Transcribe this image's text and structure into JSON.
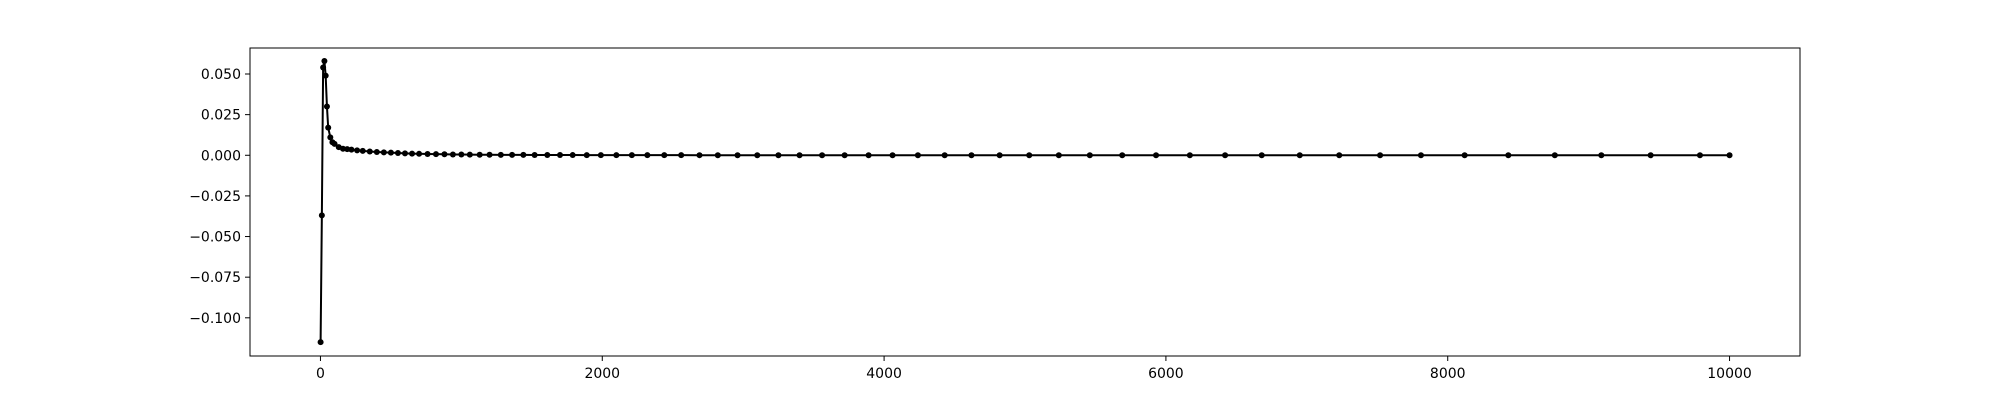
{
  "chart_data": {
    "type": "line",
    "title": "",
    "xlabel": "",
    "ylabel": "",
    "xlim": [
      -500,
      10500
    ],
    "ylim": [
      -0.1235,
      0.066
    ],
    "x_ticks": [
      0,
      2000,
      4000,
      6000,
      8000,
      10000
    ],
    "x_tick_labels": [
      "0",
      "2000",
      "4000",
      "6000",
      "8000",
      "10000"
    ],
    "y_ticks": [
      -0.1,
      -0.075,
      -0.05,
      -0.025,
      0.0,
      0.025,
      0.05
    ],
    "y_tick_labels": [
      "−0.100",
      "−0.075",
      "−0.050",
      "−0.025",
      "0.000",
      "0.025",
      "0.050"
    ],
    "grid": false,
    "legend": "none",
    "series": [
      {
        "color": "#000000",
        "marker": "circle",
        "x": [
          1,
          10,
          19,
          28,
          37,
          46,
          55,
          70,
          85,
          100,
          130,
          160,
          190,
          220,
          260,
          300,
          350,
          400,
          450,
          500,
          550,
          600,
          650,
          700,
          760,
          820,
          880,
          940,
          1000,
          1060,
          1130,
          1200,
          1280,
          1360,
          1440,
          1520,
          1610,
          1700,
          1790,
          1890,
          1990,
          2100,
          2210,
          2320,
          2440,
          2560,
          2690,
          2820,
          2960,
          3100,
          3250,
          3400,
          3560,
          3720,
          3890,
          4060,
          4240,
          4430,
          4620,
          4820,
          5030,
          5240,
          5460,
          5690,
          5930,
          6170,
          6420,
          6680,
          6950,
          7230,
          7520,
          7810,
          8120,
          8430,
          8760,
          9090,
          9440,
          9790,
          10000
        ],
        "y": [
          -0.115,
          -0.037,
          0.054,
          0.058,
          0.049,
          0.03,
          0.017,
          0.011,
          0.008,
          0.007,
          0.005,
          0.004,
          0.0038,
          0.0035,
          0.003,
          0.0027,
          0.0023,
          0.002,
          0.0018,
          0.0016,
          0.0014,
          0.0012,
          0.001,
          0.0009,
          0.0008,
          0.0007,
          0.0006,
          0.0005,
          0.00045,
          0.0004,
          0.00035,
          0.0003,
          0.00027,
          0.00024,
          0.00021,
          0.00019,
          0.00017,
          0.00015,
          0.00013,
          0.00012,
          0.00011,
          0.0001,
          9e-05,
          8e-05,
          7e-05,
          6e-05,
          5e-05,
          4e-05,
          3e-05,
          3e-05,
          2e-05,
          2e-05,
          2e-05,
          1e-05,
          1e-05,
          1e-05,
          1e-05,
          1e-05,
          1e-05,
          0.0,
          0.0,
          0.0,
          0.0,
          0.0,
          0.0,
          0.0,
          0.0,
          0.0,
          0.0,
          0.0,
          0.0,
          0.0,
          0.0,
          0.0,
          0.0,
          0.0,
          0.0,
          0.0,
          0.0
        ]
      }
    ]
  }
}
